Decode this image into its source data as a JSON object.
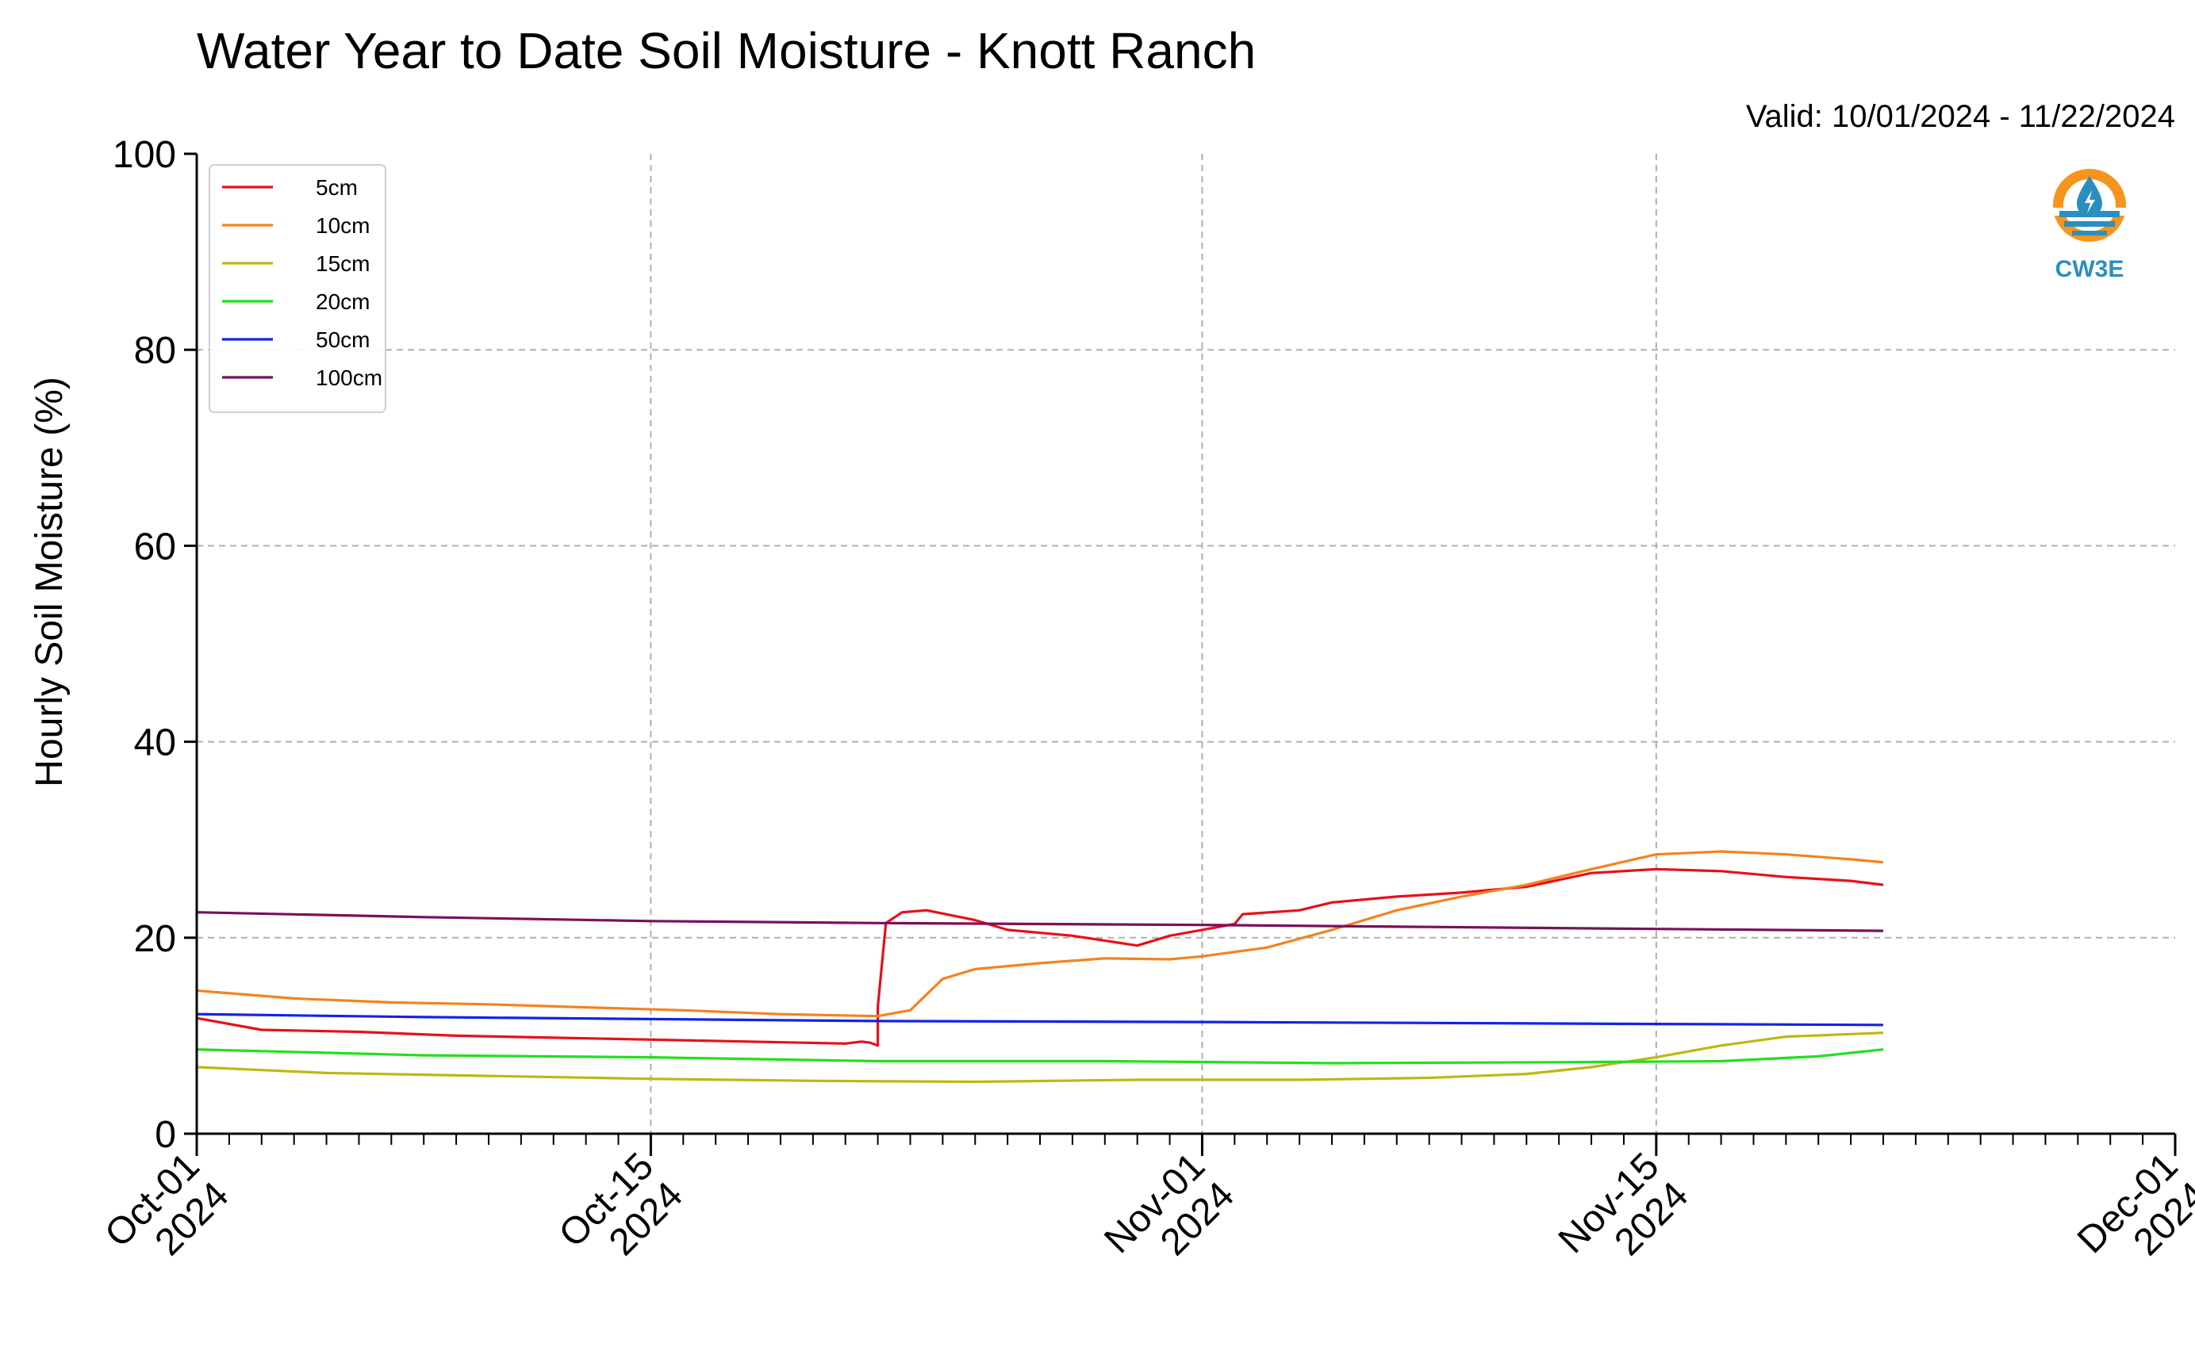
{
  "chart_data": {
    "type": "line",
    "title": "Water Year to Date Soil Moisture - Knott Ranch",
    "subtitle": "Valid: 10/01/2024 - 11/22/2024",
    "ylabel": "Hourly Soil Moisture (%)",
    "xlabel": "",
    "ylim": [
      0,
      100
    ],
    "yticks": [
      "0",
      "20",
      "40",
      "60",
      "80",
      "100"
    ],
    "xlim": [
      "2024-10-01",
      "2024-12-01"
    ],
    "xticks": [
      {
        "date": "2024-10-01",
        "line1": "Oct-01",
        "line2": "2024"
      },
      {
        "date": "2024-10-15",
        "line1": "Oct-15",
        "line2": "2024"
      },
      {
        "date": "2024-11-01",
        "line1": "Nov-01",
        "line2": "2024"
      },
      {
        "date": "2024-11-15",
        "line1": "Nov-15",
        "line2": "2024"
      },
      {
        "date": "2024-12-01",
        "line1": "Dec-01",
        "line2": "2024"
      }
    ],
    "grid": true,
    "legend_position": "top-left",
    "logo_text": "CW3E",
    "series": [
      {
        "name": "5cm",
        "color": "#e8101a",
        "points": [
          [
            "2024-10-01",
            11.8
          ],
          [
            "2024-10-03",
            10.6
          ],
          [
            "2024-10-06",
            10.4
          ],
          [
            "2024-10-09",
            10.0
          ],
          [
            "2024-10-12",
            9.8
          ],
          [
            "2024-10-15",
            9.6
          ],
          [
            "2024-10-18",
            9.4
          ],
          [
            "2024-10-21",
            9.2
          ],
          [
            "2024-10-22",
            9.0
          ],
          [
            "2024-10-21T12:00",
            9.4
          ],
          [
            "2024-10-21T18:00",
            9.3
          ],
          [
            "2024-10-22T00:00",
            13.0
          ],
          [
            "2024-10-22T06:00",
            21.5
          ],
          [
            "2024-10-22T18:00",
            22.6
          ],
          [
            "2024-10-23T12:00",
            22.8
          ],
          [
            "2024-10-25",
            21.8
          ],
          [
            "2024-10-26",
            20.8
          ],
          [
            "2024-10-28",
            20.2
          ],
          [
            "2024-10-30",
            19.2
          ],
          [
            "2024-10-31",
            20.2
          ],
          [
            "2024-11-01",
            20.8
          ],
          [
            "2024-11-02",
            21.4
          ],
          [
            "2024-11-02T06:00",
            22.4
          ],
          [
            "2024-11-04",
            22.8
          ],
          [
            "2024-11-05",
            23.6
          ],
          [
            "2024-11-07",
            24.2
          ],
          [
            "2024-11-09",
            24.6
          ],
          [
            "2024-11-11",
            25.2
          ],
          [
            "2024-11-13",
            26.6
          ],
          [
            "2024-11-15",
            27.0
          ],
          [
            "2024-11-17",
            26.8
          ],
          [
            "2024-11-19",
            26.2
          ],
          [
            "2024-11-21",
            25.8
          ],
          [
            "2024-11-22",
            25.4
          ]
        ]
      },
      {
        "name": "10cm",
        "color": "#f5821f",
        "points": [
          [
            "2024-10-01",
            14.6
          ],
          [
            "2024-10-04",
            13.8
          ],
          [
            "2024-10-07",
            13.4
          ],
          [
            "2024-10-10",
            13.2
          ],
          [
            "2024-10-13",
            12.9
          ],
          [
            "2024-10-16",
            12.6
          ],
          [
            "2024-10-19",
            12.2
          ],
          [
            "2024-10-22",
            12.0
          ],
          [
            "2024-10-23",
            12.6
          ],
          [
            "2024-10-24",
            15.8
          ],
          [
            "2024-10-25",
            16.8
          ],
          [
            "2024-10-27",
            17.4
          ],
          [
            "2024-10-29",
            17.9
          ],
          [
            "2024-10-31",
            17.8
          ],
          [
            "2024-11-01",
            18.1
          ],
          [
            "2024-11-03",
            19.0
          ],
          [
            "2024-11-05",
            20.8
          ],
          [
            "2024-11-07",
            22.8
          ],
          [
            "2024-11-09",
            24.2
          ],
          [
            "2024-11-11",
            25.4
          ],
          [
            "2024-11-13",
            27.0
          ],
          [
            "2024-11-15",
            28.5
          ],
          [
            "2024-11-17",
            28.8
          ],
          [
            "2024-11-19",
            28.5
          ],
          [
            "2024-11-21",
            28.0
          ],
          [
            "2024-11-22",
            27.7
          ]
        ]
      },
      {
        "name": "15cm",
        "color": "#bdb812",
        "points": [
          [
            "2024-10-01",
            6.8
          ],
          [
            "2024-10-05",
            6.2
          ],
          [
            "2024-10-10",
            5.9
          ],
          [
            "2024-10-15",
            5.6
          ],
          [
            "2024-10-20",
            5.4
          ],
          [
            "2024-10-25",
            5.3
          ],
          [
            "2024-10-30",
            5.5
          ],
          [
            "2024-11-04",
            5.5
          ],
          [
            "2024-11-08",
            5.7
          ],
          [
            "2024-11-11",
            6.1
          ],
          [
            "2024-11-13",
            6.8
          ],
          [
            "2024-11-15",
            7.8
          ],
          [
            "2024-11-17",
            9.0
          ],
          [
            "2024-11-19",
            9.9
          ],
          [
            "2024-11-22",
            10.3
          ]
        ]
      },
      {
        "name": "20cm",
        "color": "#22e01c",
        "points": [
          [
            "2024-10-01",
            8.6
          ],
          [
            "2024-10-08",
            8.0
          ],
          [
            "2024-10-15",
            7.8
          ],
          [
            "2024-10-22",
            7.4
          ],
          [
            "2024-10-29",
            7.4
          ],
          [
            "2024-11-05",
            7.2
          ],
          [
            "2024-11-12",
            7.3
          ],
          [
            "2024-11-17",
            7.4
          ],
          [
            "2024-11-20",
            7.9
          ],
          [
            "2024-11-22",
            8.6
          ]
        ]
      },
      {
        "name": "50cm",
        "color": "#1422e8",
        "points": [
          [
            "2024-10-01",
            12.2
          ],
          [
            "2024-10-08",
            11.9
          ],
          [
            "2024-10-15",
            11.7
          ],
          [
            "2024-10-22",
            11.5
          ],
          [
            "2024-11-01",
            11.4
          ],
          [
            "2024-11-08",
            11.3
          ],
          [
            "2024-11-15",
            11.2
          ],
          [
            "2024-11-22",
            11.1
          ]
        ]
      },
      {
        "name": "100cm",
        "color": "#7b0f5c",
        "points": [
          [
            "2024-10-01",
            22.6
          ],
          [
            "2024-10-08",
            22.1
          ],
          [
            "2024-10-15",
            21.7
          ],
          [
            "2024-10-22",
            21.5
          ],
          [
            "2024-11-01",
            21.3
          ],
          [
            "2024-11-08",
            21.1
          ],
          [
            "2024-11-15",
            20.9
          ],
          [
            "2024-11-22",
            20.7
          ]
        ]
      }
    ]
  }
}
